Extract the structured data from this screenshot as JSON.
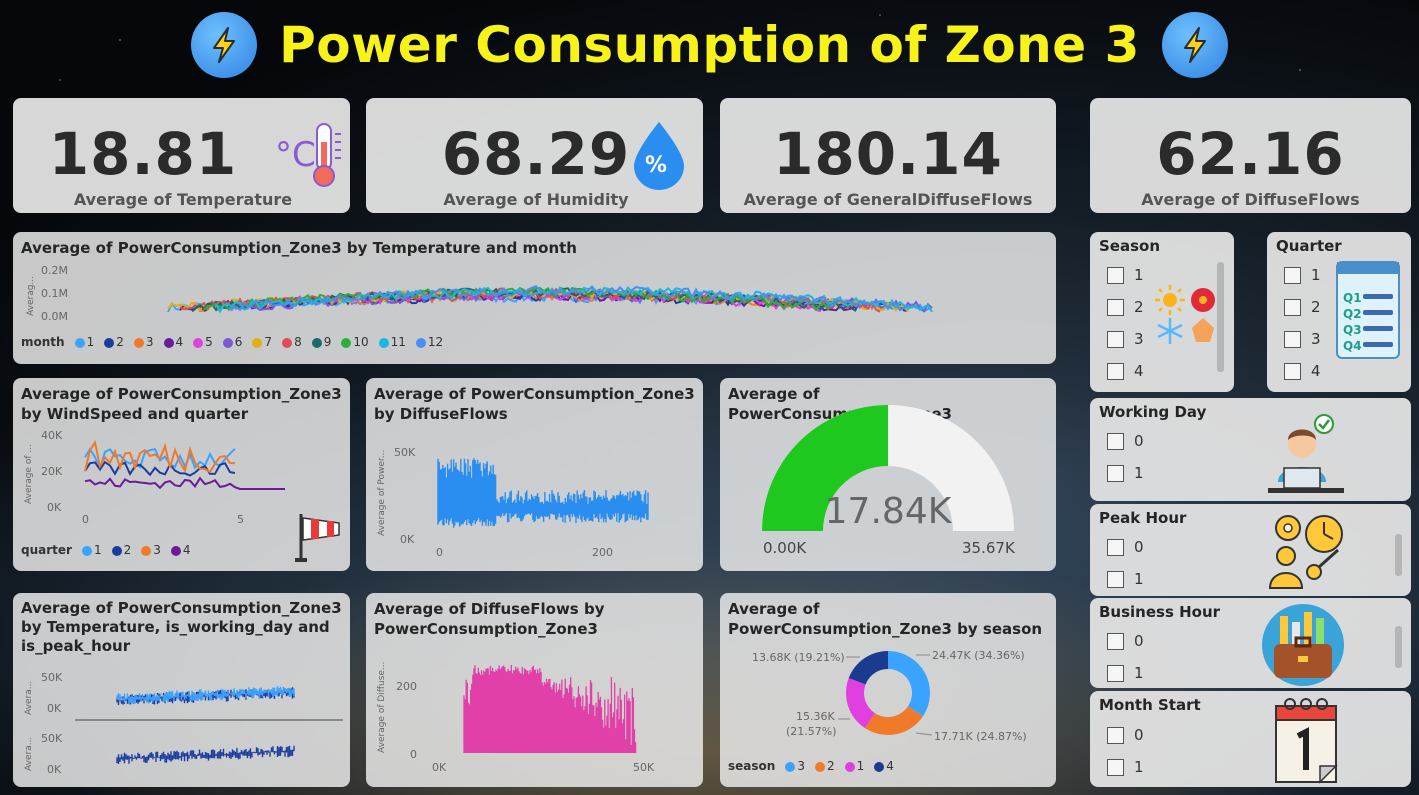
{
  "title": "Power Consumption of Zone 3",
  "kpis": [
    {
      "value": "18.81",
      "label": "Average of Temperature",
      "icon": "thermometer-icon"
    },
    {
      "value": "68.29",
      "label": "Average of Humidity",
      "icon": "humidity-drop-icon"
    },
    {
      "value": "180.14",
      "label": "Average of GeneralDiffuseFlows",
      "icon": ""
    },
    {
      "value": "62.16",
      "label": "Average of DiffuseFlows",
      "icon": ""
    }
  ],
  "colors": {
    "title": "#f7f31a",
    "gauge_fill": "#1ec81e",
    "s1": "#3aa3ff",
    "s2": "#1a3c9e",
    "s3": "#f07a2a",
    "s4": "#6a1b9a",
    "pink": "#e040a8"
  },
  "chart_temp_month": {
    "title": "Average of PowerConsumption_Zone3 by Temperature and month",
    "y_ticks": [
      "0.2M",
      "0.1M",
      "0.0M"
    ],
    "y_title": "Averag...",
    "legend_title": "month",
    "legend": [
      "1",
      "2",
      "3",
      "4",
      "5",
      "6",
      "7",
      "8",
      "9",
      "10",
      "11",
      "12"
    ]
  },
  "chart_wind": {
    "title": "Average of PowerConsumption_Zone3 by WindSpeed and quarter",
    "y_ticks": [
      "40K",
      "20K",
      "0K"
    ],
    "x_ticks": [
      "0",
      "5"
    ],
    "y_title": "Average of ...",
    "legend_title": "quarter",
    "legend": [
      "1",
      "2",
      "3",
      "4"
    ]
  },
  "chart_diffuse": {
    "title": "Average of PowerConsumption_Zone3 by DiffuseFlows",
    "y_ticks": [
      "50K",
      "0K"
    ],
    "x_ticks": [
      "0",
      "200"
    ],
    "y_title": "Average of Power..."
  },
  "gauge": {
    "title": "Average of PowerConsumption_Zone3",
    "value_label": "17.84K",
    "min_label": "0.00K",
    "max_label": "35.67K",
    "value": 17.84,
    "min": 0,
    "max": 35.67
  },
  "chart_working": {
    "title": "Average of PowerConsumption_Zone3 by Temperature, is_working_day and is_peak_hour",
    "y_ticks_top": [
      "50K",
      "0K"
    ],
    "y_ticks_bottom": [
      "50K",
      "0K"
    ],
    "y_title": "Avera..."
  },
  "chart_diffuse_by_power": {
    "title": "Average of DiffuseFlows by PowerConsumption_Zone3",
    "y_ticks": [
      "200",
      "0"
    ],
    "x_ticks": [
      "0K",
      "50K"
    ],
    "y_title": "Average of Diffuse..."
  },
  "chart_data": [
    {
      "type": "pie",
      "title": "Average of PowerConsumption_Zone3 by season",
      "legend_title": "season",
      "categories": [
        "3",
        "2",
        "1",
        "4"
      ],
      "values": [
        24.47,
        17.71,
        15.36,
        13.68
      ],
      "data_labels": [
        "24.47K (34.36%)",
        "17.71K (24.87%)",
        "15.36K (21.57%)",
        "13.68K (19.21%)"
      ],
      "colors": [
        "#3aa3ff",
        "#f07a2a",
        "#e040e0",
        "#1a3c8e"
      ]
    }
  ],
  "slicers": {
    "season": {
      "title": "Season",
      "options": [
        "1",
        "2",
        "3",
        "4"
      ]
    },
    "quarter": {
      "title": "Quarter",
      "options": [
        "1",
        "2",
        "3",
        "4"
      ]
    },
    "working_day": {
      "title": "Working Day",
      "options": [
        "0",
        "1"
      ]
    },
    "peak_hour": {
      "title": "Peak Hour",
      "options": [
        "0",
        "1"
      ]
    },
    "business_hour": {
      "title": "Business Hour",
      "options": [
        "0",
        "1"
      ]
    },
    "month_start": {
      "title": "Month Start",
      "options": [
        "0",
        "1"
      ]
    }
  }
}
